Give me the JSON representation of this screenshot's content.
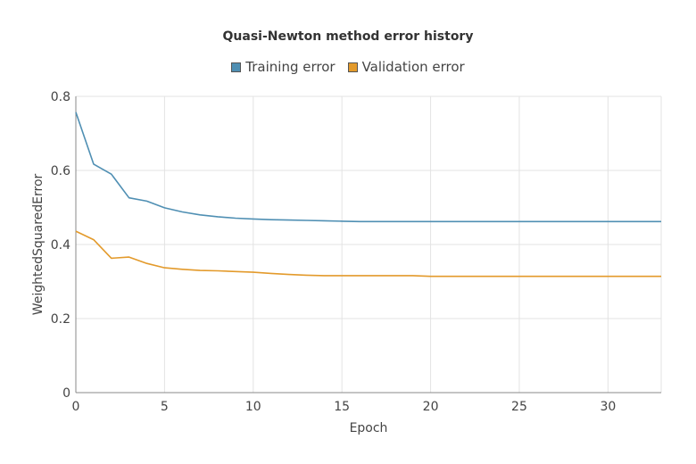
{
  "chart_data": {
    "type": "line",
    "title": "Quasi-Newton method error history",
    "xlabel": "Epoch",
    "ylabel": "WeightedSquaredError",
    "xlim": [
      0,
      33
    ],
    "ylim": [
      0,
      0.8
    ],
    "x_ticks": [
      0,
      5,
      10,
      15,
      20,
      25,
      30
    ],
    "y_ticks": [
      0,
      0.2,
      0.4,
      0.6,
      0.8
    ],
    "grid": true,
    "legend_position": "top-center",
    "x": [
      0,
      1,
      2,
      3,
      4,
      5,
      6,
      7,
      8,
      9,
      10,
      11,
      12,
      13,
      14,
      15,
      16,
      17,
      18,
      19,
      20,
      21,
      22,
      23,
      24,
      25,
      26,
      27,
      28,
      29,
      30,
      31,
      32,
      33
    ],
    "series": [
      {
        "name": "Training error",
        "color": "#4f8fb3",
        "values": [
          0.757,
          0.617,
          0.59,
          0.526,
          0.517,
          0.499,
          0.488,
          0.48,
          0.475,
          0.471,
          0.469,
          0.467,
          0.466,
          0.465,
          0.464,
          0.463,
          0.462,
          0.462,
          0.462,
          0.462,
          0.462,
          0.462,
          0.462,
          0.462,
          0.462,
          0.462,
          0.462,
          0.462,
          0.462,
          0.462,
          0.462,
          0.462,
          0.462,
          0.462
        ]
      },
      {
        "name": "Validation error",
        "color": "#e39a2b",
        "values": [
          0.436,
          0.413,
          0.363,
          0.366,
          0.349,
          0.337,
          0.333,
          0.33,
          0.329,
          0.327,
          0.325,
          0.322,
          0.319,
          0.317,
          0.316,
          0.316,
          0.316,
          0.316,
          0.316,
          0.316,
          0.314,
          0.314,
          0.314,
          0.314,
          0.314,
          0.314,
          0.314,
          0.314,
          0.314,
          0.314,
          0.314,
          0.314,
          0.314,
          0.314
        ]
      }
    ]
  }
}
